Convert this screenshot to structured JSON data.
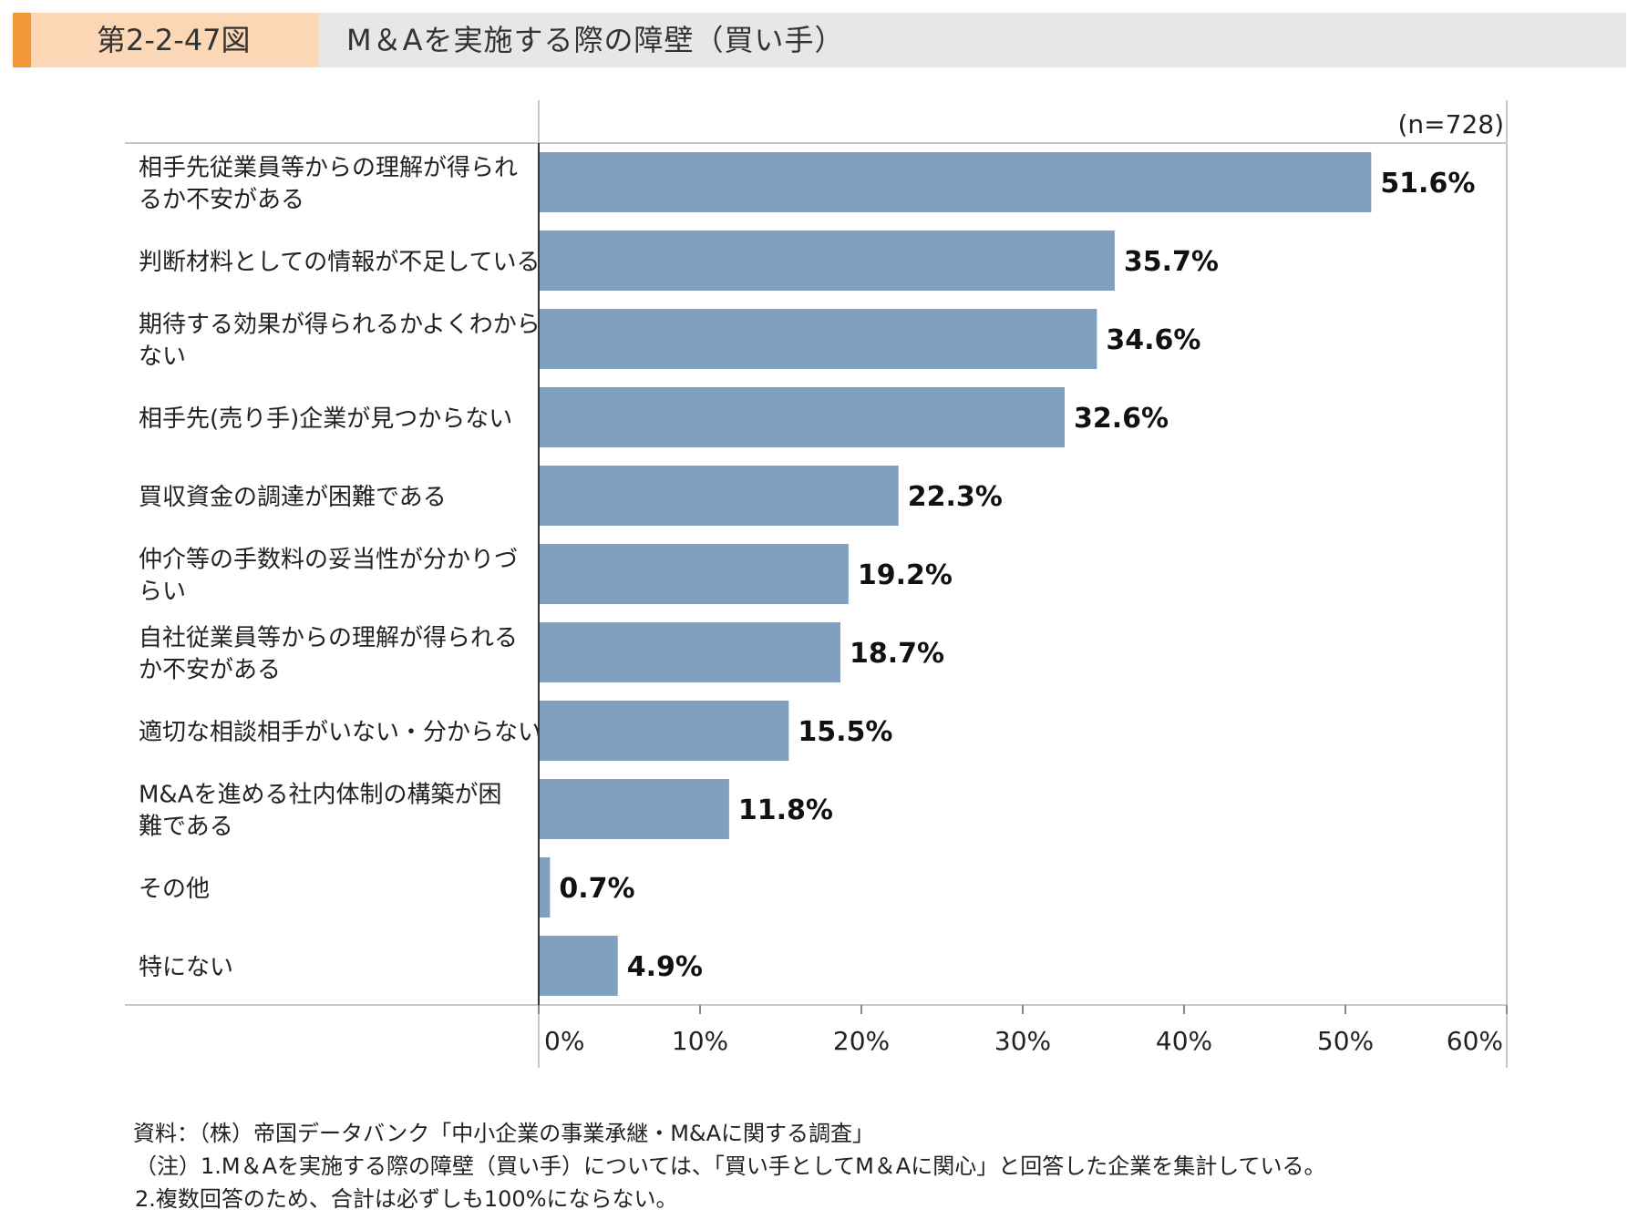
{
  "header": {
    "figure_number": "第2-2-47図",
    "title": "M＆Aを実施する際の障壁（買い手）"
  },
  "colors": {
    "bar": "#819fc0",
    "header_accent": "#f39838",
    "header_label_bg": "#fbd7b6",
    "header_bg": "#e6e7e8"
  },
  "chart_data": {
    "type": "bar",
    "orientation": "horizontal",
    "sample_note": "(n=728)",
    "categories": [
      "相手先従業員等からの理解が得られるか不安がある",
      "判断材料としての情報が不足している",
      "期待する効果が得られるかよくわからない",
      "相手先(売り手)企業が見つからない",
      "買収資金の調達が困難である",
      "仲介等の手数料の妥当性が分かりづらい",
      "自社従業員等からの理解が得られるか不安がある",
      "適切な相談相手がいない・分からない",
      "M&Aを進める社内体制の構築が困難である",
      "その他",
      "特にない"
    ],
    "category_lines": [
      [
        "相手先従業員等からの理解が得られ",
        "るか不安がある"
      ],
      [
        "判断材料としての情報が不足している"
      ],
      [
        "期待する効果が得られるかよくわから",
        "ない"
      ],
      [
        "相手先(売り手)企業が見つからない"
      ],
      [
        "買収資金の調達が困難である"
      ],
      [
        "仲介等の手数料の妥当性が分かりづ",
        "らい"
      ],
      [
        "自社従業員等からの理解が得られる",
        "か不安がある"
      ],
      [
        "適切な相談相手がいない・分からない"
      ],
      [
        "M&Aを進める社内体制の構築が困",
        "難である"
      ],
      [
        "その他"
      ],
      [
        "特にない"
      ]
    ],
    "values": [
      51.6,
      35.7,
      34.6,
      32.6,
      22.3,
      19.2,
      18.7,
      15.5,
      11.8,
      0.7,
      4.9
    ],
    "value_labels": [
      "51.6%",
      "35.7%",
      "34.6%",
      "32.6%",
      "22.3%",
      "19.2%",
      "18.7%",
      "15.5%",
      "11.8%",
      "0.7%",
      "4.9%"
    ],
    "xlim": [
      0,
      60
    ],
    "xticks": [
      0,
      10,
      20,
      30,
      40,
      50,
      60
    ],
    "xtick_labels": [
      "0%",
      "10%",
      "20%",
      "30%",
      "40%",
      "50%",
      "60%"
    ],
    "grid": false,
    "legend": "none"
  },
  "footnotes": {
    "source": "資料：（株）帝国データバンク「中小企業の事業承継・M&Aに関する調査」",
    "note1": "（注）1.M＆Aを実施する際の障壁（買い手）については、「買い手としてM＆Aに関心」と回答した企業を集計している。",
    "note2": "2.複数回答のため、合計は必ずしも100%にならない。"
  }
}
